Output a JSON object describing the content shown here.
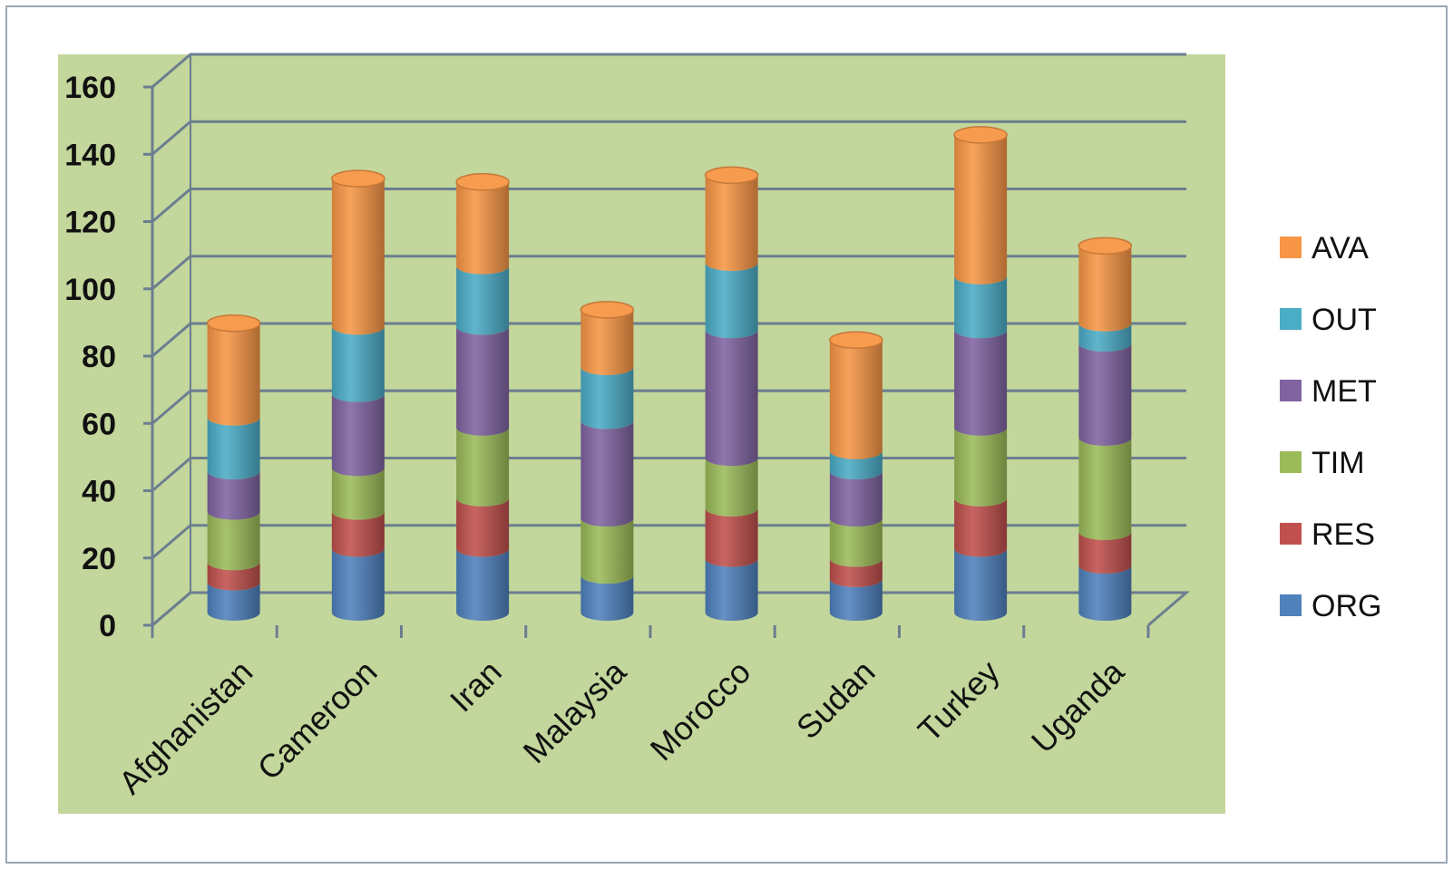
{
  "chart_data": {
    "type": "bar",
    "stacked": true,
    "three_d": true,
    "categories": [
      "Afghanistan",
      "Cameroon",
      "Iran",
      "Malaysia",
      "Morocco",
      "Sudan",
      "Turkey",
      "Uganda"
    ],
    "series": [
      {
        "name": "ORG",
        "color": "#4f81bd",
        "values": [
          9,
          19,
          19,
          11,
          16,
          10,
          19,
          14
        ]
      },
      {
        "name": "RES",
        "color": "#c0504d",
        "values": [
          6,
          11,
          15,
          0,
          15,
          6,
          15,
          10
        ]
      },
      {
        "name": "TIM",
        "color": "#9bbb59",
        "values": [
          15,
          13,
          21,
          17,
          15,
          12,
          21,
          28
        ]
      },
      {
        "name": "MET",
        "color": "#8064a2",
        "values": [
          12,
          22,
          30,
          29,
          38,
          14,
          29,
          28
        ]
      },
      {
        "name": "OUT",
        "color": "#4bacc6",
        "values": [
          16,
          20,
          18,
          16,
          20,
          6,
          16,
          6
        ]
      },
      {
        "name": "AVA",
        "color": "#f79646",
        "values": [
          28,
          44,
          25,
          17,
          26,
          33,
          42,
          23
        ]
      }
    ],
    "yticks": [
      "0",
      "20",
      "40",
      "60",
      "80",
      "100",
      "120",
      "140",
      "160"
    ],
    "ylim": [
      0,
      160
    ],
    "grid": true,
    "legend_position": "right",
    "plot_background": "#c3d69b"
  }
}
